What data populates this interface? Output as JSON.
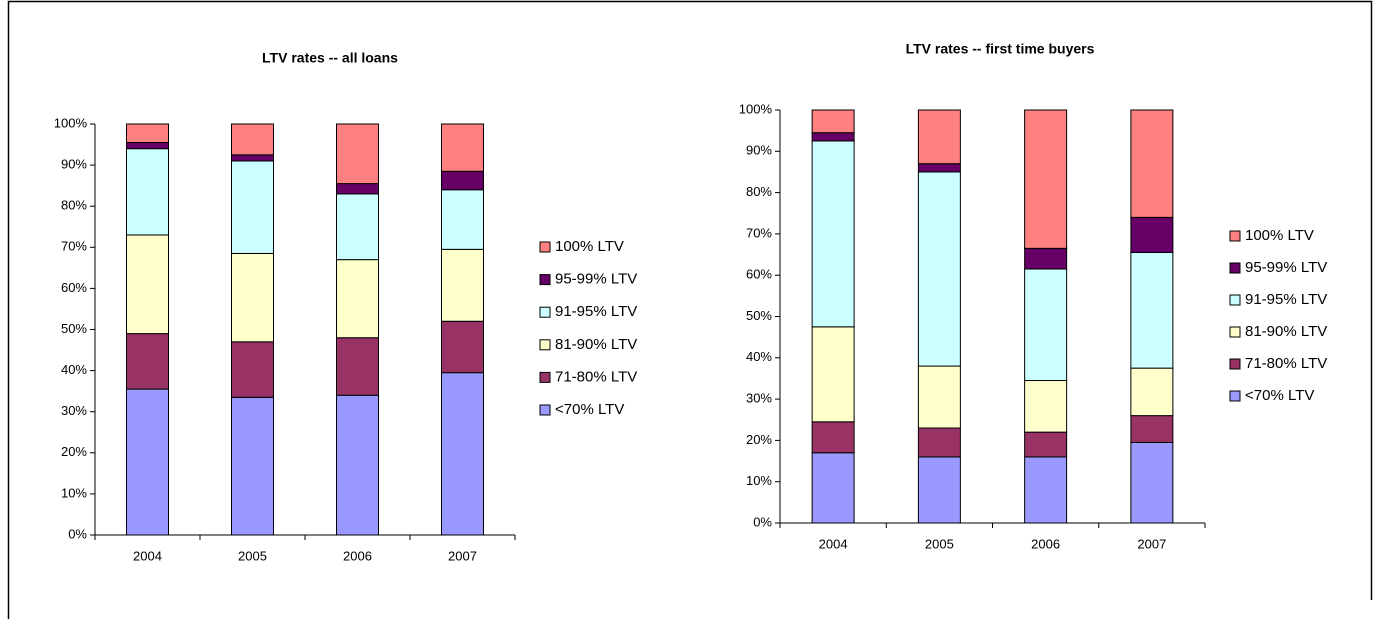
{
  "chart_data": [
    {
      "type": "stacked-bar",
      "title": "LTV rates -- all loans",
      "categories": [
        "2004",
        "2005",
        "2006",
        "2007"
      ],
      "series": [
        {
          "name": "<70% LTV",
          "color": "#9999ff",
          "values": [
            35.5,
            33.5,
            34,
            39.5
          ]
        },
        {
          "name": "71-80% LTV",
          "color": "#993366",
          "values": [
            13.5,
            13.5,
            14,
            12.5
          ]
        },
        {
          "name": "81-90% LTV",
          "color": "#ffffcc",
          "values": [
            24,
            21.5,
            19,
            17.5
          ]
        },
        {
          "name": "91-95% LTV",
          "color": "#ccffff",
          "values": [
            21,
            22.5,
            16,
            14.5
          ]
        },
        {
          "name": "95-99% LTV",
          "color": "#660066",
          "values": [
            1.5,
            1.5,
            2.5,
            4.5
          ]
        },
        {
          "name": "100% LTV",
          "color": "#ff8080",
          "values": [
            4.5,
            7.5,
            14.5,
            11.5
          ]
        }
      ],
      "ylim": [
        0,
        100
      ],
      "yticks": [
        {
          "value": 0,
          "label": "0%"
        },
        {
          "value": 10,
          "label": "10%"
        },
        {
          "value": 20,
          "label": "20%"
        },
        {
          "value": 30,
          "label": "30%"
        },
        {
          "value": 40,
          "label": "40%"
        },
        {
          "value": 50,
          "label": "50%"
        },
        {
          "value": 60,
          "label": "60%"
        },
        {
          "value": 70,
          "label": "70%"
        },
        {
          "value": 80,
          "label": "80%"
        },
        {
          "value": 90,
          "label": "90%"
        },
        {
          "value": 100,
          "label": "100%"
        }
      ]
    },
    {
      "type": "stacked-bar",
      "title": "LTV rates -- first time buyers",
      "categories": [
        "2004",
        "2005",
        "2006",
        "2007"
      ],
      "series": [
        {
          "name": "<70% LTV",
          "color": "#9999ff",
          "values": [
            17,
            16,
            16,
            19.5
          ]
        },
        {
          "name": "71-80% LTV",
          "color": "#993366",
          "values": [
            7.5,
            7,
            6,
            6.5
          ]
        },
        {
          "name": "81-90% LTV",
          "color": "#ffffcc",
          "values": [
            23,
            15,
            12.5,
            11.5
          ]
        },
        {
          "name": "91-95% LTV",
          "color": "#ccffff",
          "values": [
            45,
            47,
            27,
            28
          ]
        },
        {
          "name": "95-99% LTV",
          "color": "#660066",
          "values": [
            2,
            2,
            5,
            8.5
          ]
        },
        {
          "name": "100% LTV",
          "color": "#ff8080",
          "values": [
            5.5,
            13,
            33.5,
            26
          ]
        }
      ],
      "ylim": [
        0,
        100
      ],
      "yticks": [
        {
          "value": 0,
          "label": "0%"
        },
        {
          "value": 10,
          "label": "10%"
        },
        {
          "value": 20,
          "label": "20%"
        },
        {
          "value": 30,
          "label": "30%"
        },
        {
          "value": 40,
          "label": "40%"
        },
        {
          "value": 50,
          "label": "50%"
        },
        {
          "value": 60,
          "label": "60%"
        },
        {
          "value": 70,
          "label": "70%"
        },
        {
          "value": 80,
          "label": "80%"
        },
        {
          "value": 90,
          "label": "90%"
        },
        {
          "value": 100,
          "label": "100%"
        }
      ]
    }
  ]
}
